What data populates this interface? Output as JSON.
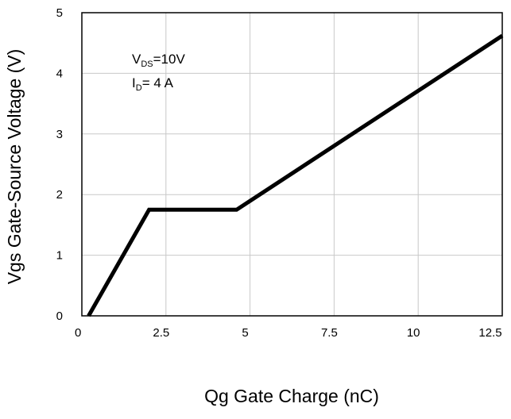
{
  "chart_data": {
    "type": "line",
    "title": "",
    "xlabel": "Qg Gate Charge (nC)",
    "ylabel": "Vgs Gate-Source Voltage (V)",
    "xlim": [
      0,
      12.5
    ],
    "ylim": [
      0,
      5
    ],
    "xticks": [
      0,
      2.5,
      5,
      7.5,
      10,
      12.5
    ],
    "xtick_labels": [
      "0",
      "2.5",
      "5",
      "7.5",
      "10",
      "12.5"
    ],
    "yticks": [
      0,
      1,
      2,
      3,
      4,
      5
    ],
    "ytick_labels": [
      "0",
      "1",
      "2",
      "3",
      "4",
      "5"
    ],
    "grid": true,
    "series": [
      {
        "x": [
          0.2,
          2.0,
          4.6,
          12.5
        ],
        "y": [
          0.0,
          1.75,
          1.75,
          4.62
        ]
      }
    ],
    "annotations": [
      {
        "main": "V",
        "sub": "DS",
        "rest": "=10V"
      },
      {
        "main": "I",
        "sub": "D",
        "rest": "= 4 A"
      }
    ],
    "colors": {
      "line": "#000000",
      "grid": "#c8c8c8",
      "frame": "#000000"
    }
  }
}
